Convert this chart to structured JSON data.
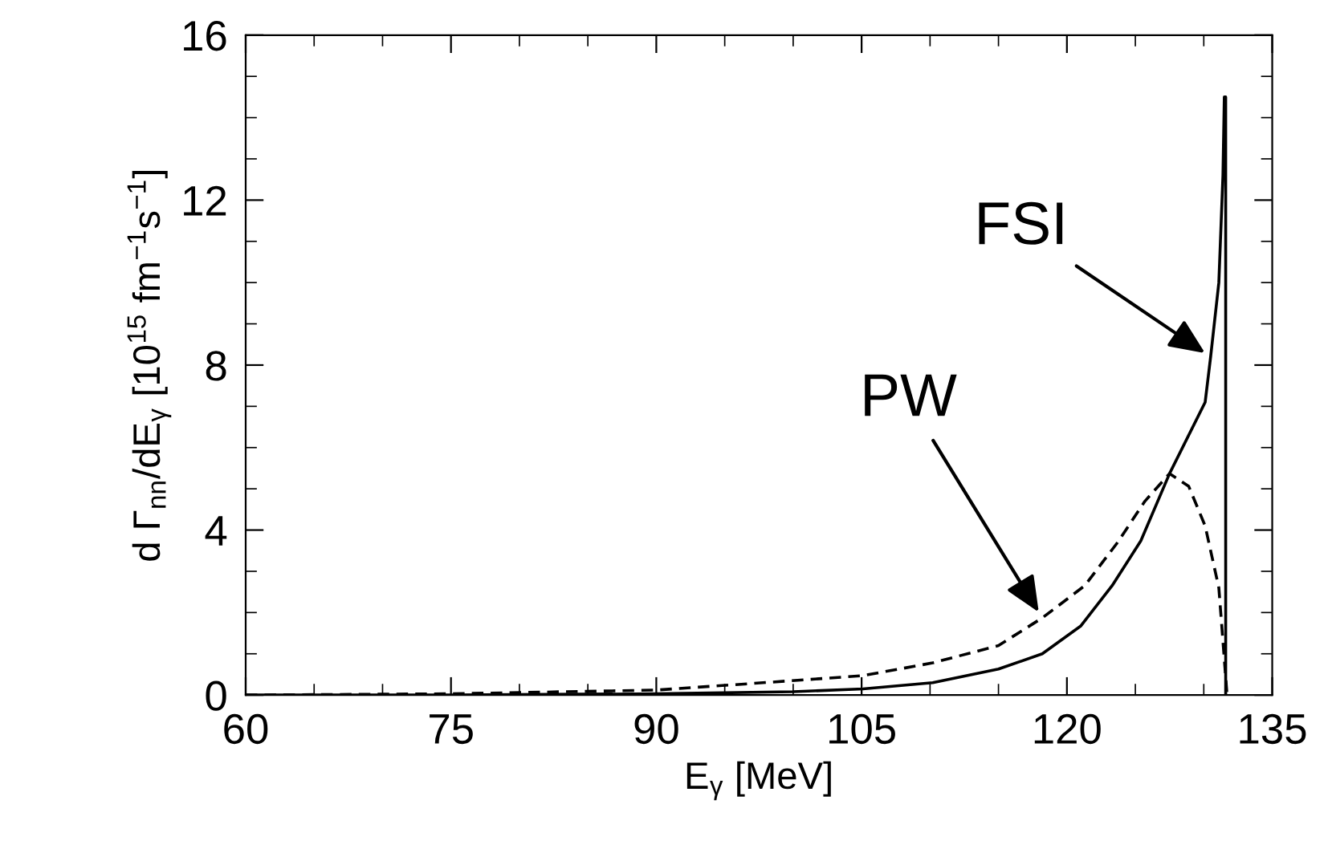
{
  "chart_data": {
    "type": "line",
    "xlabel": "E$_{γ}$ [MeV]",
    "ylabel": "d Γ$_{nn}$/dE$_{γ}$ [10$^{15}$ fm$^{−1}$s$^{−1}$]",
    "xlim": [
      60,
      135
    ],
    "xticks": [
      60,
      75,
      90,
      105,
      120,
      135
    ],
    "ylim": [
      0,
      16
    ],
    "yticks": [
      0,
      4,
      8,
      12,
      16
    ],
    "grid": false,
    "legend": false,
    "marker": "none",
    "series": [
      {
        "color": "#000000",
        "line_style": "solid",
        "x": [
          60,
          75,
          90,
          100,
          105.1,
          110.2,
          115,
          118.2,
          121,
          123.3,
          125.4,
          127.5,
          130.1,
          130.5,
          131.1,
          131.4,
          131.5,
          131.6,
          131.6
        ],
        "values": [
          0,
          0,
          0.03,
          0.08,
          0.15,
          0.3,
          0.63,
          1.0,
          1.67,
          2.65,
          3.74,
          5.37,
          7.1,
          8.2,
          10.0,
          12.6,
          14.5,
          14.5,
          0
        ]
      },
      {
        "color": "#000000",
        "line_style": "dashed",
        "x": [
          60,
          75,
          90,
          98.3,
          105.1,
          110.2,
          115,
          118.2,
          121.3,
          123.7,
          125.7,
          127.5,
          128.9,
          130.1,
          131.1,
          131.7
        ],
        "values": [
          0,
          0.03,
          0.12,
          0.31,
          0.47,
          0.78,
          1.2,
          1.87,
          2.65,
          3.7,
          4.7,
          5.37,
          5.06,
          4.1,
          2.6,
          0
        ]
      }
    ],
    "annotations": [
      {
        "text": "FSI",
        "x": 130.5,
        "y": 8.2
      },
      {
        "text": "PW",
        "x": 118.2,
        "y": 1.87
      }
    ]
  }
}
